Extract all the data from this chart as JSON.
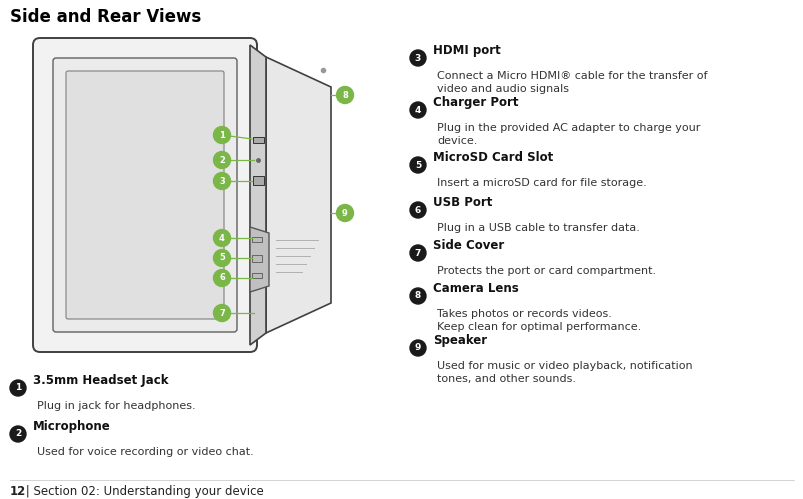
{
  "title": "Side and Rear Views",
  "footer_num": "12",
  "footer_text": " | Section 02: Understanding your device",
  "bg_color": "#ffffff",
  "title_color": "#000000",
  "green_color": "#7ab648",
  "black_circle_color": "#1a1a1a",
  "items_left": [
    {
      "num": "1",
      "title": "3.5mm Headset Jack",
      "desc": "Plug in jack for headphones."
    },
    {
      "num": "2",
      "title": "Microphone",
      "desc": "Used for voice recording or video chat."
    }
  ],
  "items_right": [
    {
      "num": "3",
      "title": "HDMI port",
      "desc_lines": [
        "Connect a Micro HDMI® cable for the transfer of",
        "video and audio signals"
      ]
    },
    {
      "num": "4",
      "title": "Charger Port",
      "desc_lines": [
        "Plug in the provided AC adapter to charge your",
        "device."
      ]
    },
    {
      "num": "5",
      "title": "MicroSD Card Slot",
      "desc_lines": [
        "Insert a microSD card for file storage."
      ]
    },
    {
      "num": "6",
      "title": "USB Port",
      "desc_lines": [
        "Plug in a USB cable to transfer data."
      ]
    },
    {
      "num": "7",
      "title": "Side Cover",
      "desc_lines": [
        "Protects the port or card compartment."
      ]
    },
    {
      "num": "8",
      "title": "Camera Lens",
      "desc_lines": [
        "Takes photos or records videos.",
        "Keep clean for optimal performance."
      ]
    },
    {
      "num": "9",
      "title": "Speaker",
      "desc_lines": [
        "Used for music or video playback, notification",
        "tones, and other sounds."
      ]
    }
  ]
}
